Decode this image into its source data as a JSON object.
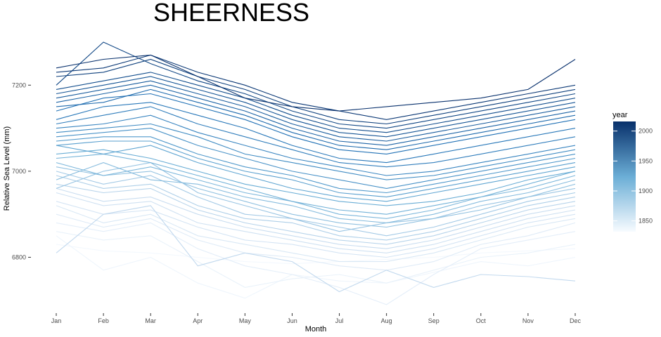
{
  "chart_data": {
    "type": "line",
    "title": "SHEERNESS",
    "xlabel": "Month",
    "ylabel": "Relative Sea Level (mm)",
    "categories": [
      "Jan",
      "Feb",
      "Mar",
      "Apr",
      "May",
      "Jun",
      "Jul",
      "Aug",
      "Sep",
      "Oct",
      "Nov",
      "Dec"
    ],
    "y_ticks": [
      6800,
      7000,
      7200
    ],
    "ylim": [
      6680,
      7300
    ],
    "grid": false,
    "legend": {
      "title": "year",
      "position": "right",
      "type": "colorbar",
      "range": [
        1832,
        2016
      ],
      "ticks": [
        1850,
        1900,
        1950,
        2000
      ],
      "color_low": "#f7fbff",
      "color_high": "#08306b"
    },
    "series": [
      {
        "year": 1836,
        "values": [
          6830,
          6815,
          6810,
          6800,
          6790,
          6785,
          6790,
          6795,
          6800,
          6810,
          6815,
          6820
        ]
      },
      {
        "year": 1840,
        "values": [
          6850,
          6770,
          6800,
          6740,
          6705,
          6760,
          6745,
          6740,
          6765,
          6790,
          6780,
          6800
        ]
      },
      {
        "year": 1845,
        "values": [
          6860,
          6840,
          6850,
          6790,
          6730,
          6750,
          6760,
          6740,
          6770,
          6800,
          6810,
          6830
        ]
      },
      {
        "year": 1850,
        "values": [
          6880,
          6860,
          6880,
          6820,
          6780,
          6760,
          6730,
          6690,
          6760,
          6820,
          6840,
          6860
        ]
      },
      {
        "year": 1855,
        "values": [
          6900,
          6870,
          6890,
          6840,
          6810,
          6800,
          6780,
          6770,
          6790,
          6830,
          6850,
          6880
        ]
      },
      {
        "year": 1860,
        "values": [
          6920,
          6880,
          6900,
          6850,
          6830,
          6810,
          6790,
          6790,
          6810,
          6840,
          6870,
          6890
        ]
      },
      {
        "year": 1865,
        "values": [
          6930,
          6900,
          6910,
          6870,
          6840,
          6830,
          6810,
          6800,
          6820,
          6850,
          6880,
          6900
        ]
      },
      {
        "year": 1870,
        "values": [
          6950,
          6920,
          6930,
          6880,
          6860,
          6840,
          6820,
          6810,
          6830,
          6860,
          6890,
          6910
        ]
      },
      {
        "year": 1875,
        "values": [
          6960,
          6930,
          6940,
          6900,
          6870,
          6850,
          6830,
          6820,
          6840,
          6870,
          6900,
          6920
        ]
      },
      {
        "year": 1880,
        "values": [
          6810,
          6900,
          6920,
          6780,
          6810,
          6790,
          6720,
          6770,
          6730,
          6760,
          6755,
          6745
        ]
      },
      {
        "year": 1885,
        "values": [
          6970,
          6950,
          6960,
          6910,
          6880,
          6860,
          6840,
          6830,
          6850,
          6880,
          6910,
          6930
        ]
      },
      {
        "year": 1890,
        "values": [
          6990,
          6960,
          6970,
          6920,
          6890,
          6880,
          6850,
          6840,
          6860,
          6890,
          6920,
          6940
        ]
      },
      {
        "year": 1895,
        "values": [
          7000,
          6970,
          6990,
          6940,
          6900,
          6890,
          6870,
          6850,
          6870,
          6900,
          6930,
          6950
        ]
      },
      {
        "year": 1900,
        "values": [
          6960,
          7000,
          7020,
          6950,
          6920,
          6890,
          6860,
          6880,
          6890,
          6920,
          6940,
          6960
        ]
      },
      {
        "year": 1905,
        "values": [
          7010,
          6990,
          7000,
          6960,
          6930,
          6900,
          6880,
          6870,
          6890,
          6910,
          6940,
          6970
        ]
      },
      {
        "year": 1910,
        "values": [
          6980,
          7020,
          6980,
          6970,
          6940,
          6920,
          6890,
          6880,
          6900,
          6930,
          6950,
          6980
        ]
      },
      {
        "year": 1915,
        "values": [
          7020,
          6990,
          7010,
          6980,
          6950,
          6930,
          6900,
          6890,
          6910,
          6940,
          6960,
          6990
        ]
      },
      {
        "year": 1920,
        "values": [
          7030,
          7040,
          7020,
          6990,
          6960,
          6930,
          6910,
          6900,
          6920,
          6940,
          6970,
          7000
        ]
      },
      {
        "year": 1925,
        "values": [
          7040,
          7050,
          7030,
          7000,
          6970,
          6950,
          6930,
          6920,
          6930,
          6950,
          6980,
          7000
        ]
      },
      {
        "year": 1930,
        "values": [
          7060,
          7040,
          7060,
          7020,
          6990,
          6960,
          6940,
          6930,
          6950,
          6970,
          6990,
          7010
        ]
      },
      {
        "year": 1935,
        "values": [
          7060,
          7070,
          7070,
          7030,
          7000,
          6980,
          6950,
          6940,
          6960,
          6980,
          7000,
          7020
        ]
      },
      {
        "year": 1940,
        "values": [
          7070,
          7080,
          7080,
          7040,
          7010,
          6990,
          6960,
          6950,
          6970,
          6990,
          7010,
          7030
        ]
      },
      {
        "year": 1945,
        "values": [
          7080,
          7090,
          7100,
          7060,
          7030,
          7000,
          6980,
          6960,
          6980,
          7000,
          7020,
          7040
        ]
      },
      {
        "year": 1950,
        "values": [
          7090,
          7100,
          7110,
          7080,
          7040,
          7020,
          7000,
          6980,
          6990,
          7010,
          7030,
          7050
        ]
      },
      {
        "year": 1955,
        "values": [
          7100,
          7110,
          7130,
          7090,
          7060,
          7030,
          7010,
          6990,
          7000,
          7020,
          7040,
          7060
        ]
      },
      {
        "year": 1960,
        "values": [
          7110,
          7130,
          7150,
          7110,
          7080,
          7050,
          7020,
          7010,
          7020,
          7040,
          7060,
          7080
        ]
      },
      {
        "year": 1965,
        "values": [
          7120,
          7150,
          7160,
          7130,
          7100,
          7060,
          7030,
          7020,
          7040,
          7060,
          7080,
          7100
        ]
      },
      {
        "year": 1970,
        "values": [
          7140,
          7170,
          7180,
          7150,
          7120,
          7080,
          7050,
          7040,
          7060,
          7080,
          7100,
          7120
        ]
      },
      {
        "year": 1975,
        "values": [
          7150,
          7160,
          7190,
          7160,
          7130,
          7090,
          7060,
          7050,
          7070,
          7090,
          7110,
          7130
        ]
      },
      {
        "year": 1980,
        "values": [
          7160,
          7180,
          7200,
          7170,
          7140,
          7100,
          7070,
          7060,
          7080,
          7100,
          7120,
          7140
        ]
      },
      {
        "year": 1985,
        "values": [
          7170,
          7190,
          7210,
          7180,
          7150,
          7110,
          7080,
          7070,
          7090,
          7110,
          7130,
          7150
        ]
      },
      {
        "year": 1990,
        "values": [
          7180,
          7200,
          7220,
          7190,
          7160,
          7120,
          7090,
          7080,
          7100,
          7120,
          7140,
          7160
        ]
      },
      {
        "year": 1995,
        "values": [
          7190,
          7210,
          7230,
          7200,
          7170,
          7130,
          7100,
          7090,
          7110,
          7130,
          7150,
          7170
        ]
      },
      {
        "year": 2000,
        "values": [
          7200,
          7300,
          7250,
          7210,
          7180,
          7140,
          7110,
          7100,
          7120,
          7140,
          7160,
          7180
        ]
      },
      {
        "year": 2005,
        "values": [
          7220,
          7230,
          7260,
          7220,
          7190,
          7150,
          7120,
          7110,
          7130,
          7150,
          7170,
          7190
        ]
      },
      {
        "year": 2010,
        "values": [
          7230,
          7240,
          7270,
          7230,
          7200,
          7160,
          7140,
          7120,
          7140,
          7160,
          7180,
          7200
        ]
      },
      {
        "year": 2015,
        "values": [
          7240,
          7260,
          7270,
          7220,
          7170,
          7150,
          7140,
          7150,
          7160,
          7170,
          7190,
          7260
        ]
      }
    ]
  }
}
